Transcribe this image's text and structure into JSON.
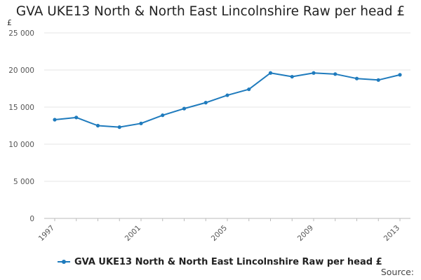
{
  "chart_data": {
    "type": "line",
    "title": "GVA UKE13 North & North East Lincolnshire Raw per head £",
    "ylabel": "£",
    "xlabel": "",
    "x": [
      1997,
      1998,
      1999,
      2000,
      2001,
      2002,
      2003,
      2004,
      2005,
      2006,
      2007,
      2008,
      2009,
      2010,
      2011,
      2012,
      2013
    ],
    "x_tick_labels": [
      "1997",
      "2001",
      "2005",
      "2009",
      "2013"
    ],
    "y_tick_values": [
      0,
      5000,
      10000,
      15000,
      20000,
      25000
    ],
    "y_tick_labels": [
      "0",
      "5 000",
      "10 000",
      "15 000",
      "20 000",
      "25 000"
    ],
    "ylim": [
      0,
      25000
    ],
    "xlim": [
      1997,
      2013
    ],
    "grid": true,
    "legend_position": "bottom-left",
    "series": [
      {
        "name": "GVA UKE13 North & North East Lincolnshire Raw per head £",
        "color": "#1f7bbd",
        "values": [
          13300,
          13600,
          12500,
          12300,
          12800,
          13900,
          14800,
          15600,
          16600,
          17400,
          19600,
          19100,
          19600,
          19450,
          18850,
          18650,
          19350
        ]
      }
    ]
  },
  "footer": {
    "source_label": "Source:"
  }
}
